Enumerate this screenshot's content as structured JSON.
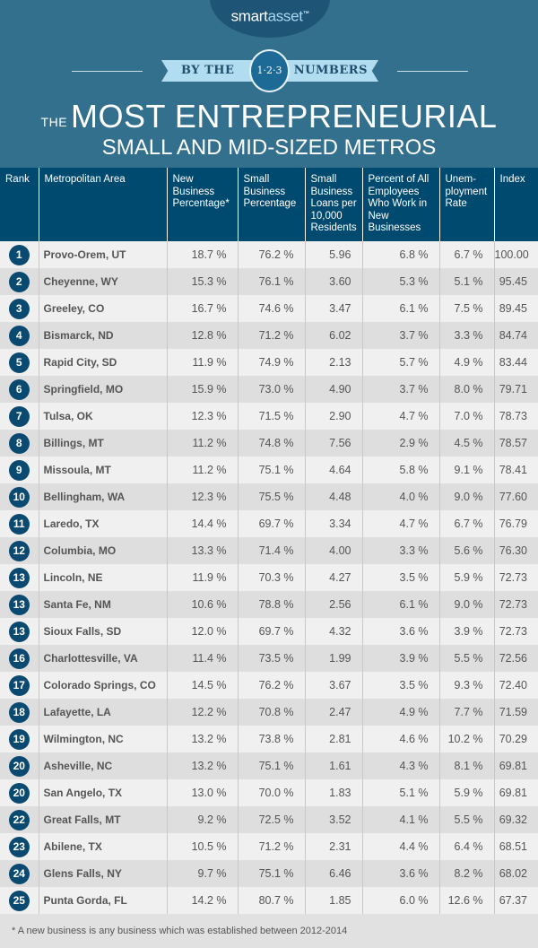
{
  "brand": {
    "smart": "smart",
    "asset": "asset",
    "tm": "™"
  },
  "ribbon": {
    "left": "BY THE",
    "badge": "1·2·3",
    "right": "NUMBERS"
  },
  "title": {
    "prefix": "THE",
    "line1": "MOST ENTREPRENEURIAL",
    "line2": "SMALL AND MID-SIZED METROS"
  },
  "columns": [
    "Rank",
    "Metropolitan Area",
    "New Business Percentage*",
    "Small Business Percentage",
    "Small Business Loans per 10,000 Residents",
    "Percent of All Employees Who Work in New Businesses",
    "Unem-ployment Rate",
    "Index"
  ],
  "rows": [
    [
      "1",
      "Provo-Orem, UT",
      "18.7 %",
      "76.2 %",
      "5.96",
      "6.8 %",
      "6.7 %",
      "100.00"
    ],
    [
      "2",
      "Cheyenne, WY",
      "15.3 %",
      "76.1 %",
      "3.60",
      "5.3 %",
      "5.1 %",
      "95.45"
    ],
    [
      "3",
      "Greeley, CO",
      "16.7 %",
      "74.6 %",
      "3.47",
      "6.1 %",
      "7.5 %",
      "89.45"
    ],
    [
      "4",
      "Bismarck, ND",
      "12.8 %",
      "71.2 %",
      "6.02",
      "3.7 %",
      "3.3 %",
      "84.74"
    ],
    [
      "5",
      "Rapid City, SD",
      "11.9 %",
      "74.9 %",
      "2.13",
      "5.7 %",
      "4.9 %",
      "83.44"
    ],
    [
      "6",
      "Springfield, MO",
      "15.9 %",
      "73.0 %",
      "4.90",
      "3.7 %",
      "8.0 %",
      "79.71"
    ],
    [
      "7",
      "Tulsa, OK",
      "12.3 %",
      "71.5 %",
      "2.90",
      "4.7 %",
      "7.0 %",
      "78.73"
    ],
    [
      "8",
      "Billings, MT",
      "11.2 %",
      "74.8 %",
      "7.56",
      "2.9 %",
      "4.5 %",
      "78.57"
    ],
    [
      "9",
      "Missoula, MT",
      "11.2 %",
      "75.1 %",
      "4.64",
      "5.8 %",
      "9.1 %",
      "78.41"
    ],
    [
      "10",
      "Bellingham, WA",
      "12.3 %",
      "75.5 %",
      "4.48",
      "4.0 %",
      "9.0 %",
      "77.60"
    ],
    [
      "11",
      "Laredo, TX",
      "14.4 %",
      "69.7 %",
      "3.34",
      "4.7 %",
      "6.7 %",
      "76.79"
    ],
    [
      "12",
      "Columbia, MO",
      "13.3 %",
      "71.4 %",
      "4.00",
      "3.3 %",
      "5.6 %",
      "76.30"
    ],
    [
      "13",
      "Lincoln, NE",
      "11.9 %",
      "70.3 %",
      "4.27",
      "3.5 %",
      "5.9 %",
      "72.73"
    ],
    [
      "13",
      "Santa Fe, NM",
      "10.6 %",
      "78.8 %",
      "2.56",
      "6.1 %",
      "9.0 %",
      "72.73"
    ],
    [
      "13",
      "Sioux Falls, SD",
      "12.0 %",
      "69.7 %",
      "4.32",
      "3.6 %",
      "3.9 %",
      "72.73"
    ],
    [
      "16",
      "Charlottesville, VA",
      "11.4 %",
      "73.5 %",
      "1.99",
      "3.9 %",
      "5.5 %",
      "72.56"
    ],
    [
      "17",
      "Colorado Springs, CO",
      "14.5 %",
      "76.2 %",
      "3.67",
      "3.5 %",
      "9.3 %",
      "72.40"
    ],
    [
      "18",
      "Lafayette, LA",
      "12.2 %",
      "70.8 %",
      "2.47",
      "4.9 %",
      "7.7 %",
      "71.59"
    ],
    [
      "19",
      "Wilmington, NC",
      "13.2 %",
      "73.8 %",
      "2.81",
      "4.6 %",
      "10.2 %",
      "70.29"
    ],
    [
      "20",
      "Asheville, NC",
      "13.2 %",
      "75.1 %",
      "1.61",
      "4.3 %",
      "8.1 %",
      "69.81"
    ],
    [
      "20",
      "San Angelo, TX",
      "13.0 %",
      "70.0 %",
      "1.83",
      "5.1 %",
      "5.9 %",
      "69.81"
    ],
    [
      "22",
      "Great Falls, MT",
      "9.2 %",
      "72.5 %",
      "3.52",
      "4.1 %",
      "5.5 %",
      "69.32"
    ],
    [
      "23",
      "Abilene, TX",
      "10.5 %",
      "71.2 %",
      "2.31",
      "4.4 %",
      "6.4 %",
      "68.51"
    ],
    [
      "24",
      "Glens Falls, NY",
      "9.7 %",
      "75.1 %",
      "6.46",
      "3.6 %",
      "8.2 %",
      "68.02"
    ],
    [
      "25",
      "Punta Gorda, FL",
      "14.2 %",
      "80.7 %",
      "1.85",
      "6.0 %",
      "12.6 %",
      "67.37"
    ]
  ],
  "footnote": "* A new business is any business which was established between 2012-2014",
  "colors": {
    "header_bg": "#33708d",
    "table_header": "#004a6f",
    "rank_badge": "#0b4a70",
    "row_odd": "#f0f0f0",
    "row_even": "#dedede"
  }
}
